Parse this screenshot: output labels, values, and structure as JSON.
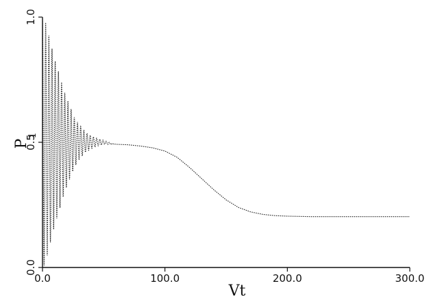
{
  "chart_data": {
    "type": "line",
    "title": "",
    "xlabel": "Vt",
    "ylabel_main": "P",
    "ylabel_sub": "1",
    "xlim": [
      0,
      300
    ],
    "ylim": [
      0,
      1
    ],
    "xticks": [
      0,
      100,
      200,
      300
    ],
    "xtick_labels": [
      "0.0",
      "100.0",
      "200.0",
      "300.0"
    ],
    "yticks": [
      0,
      0.5,
      1
    ],
    "ytick_labels": [
      "0.0",
      "0.5",
      "1.0"
    ],
    "grid": false,
    "series": [
      {
        "description_points": "damped oscillation around 0.5 from Vt=0 to about 55, then flat near 0.49, decaying smoothly to about 0.2 between Vt=100 and 200, flat to 300",
        "x": [
          0,
          2,
          4,
          6,
          8,
          10,
          12,
          15,
          18,
          22,
          26,
          30,
          35,
          40,
          45,
          50,
          55,
          60,
          70,
          80,
          90,
          100,
          110,
          120,
          130,
          140,
          150,
          160,
          170,
          180,
          190,
          200,
          210,
          220,
          240,
          260,
          280,
          300
        ],
        "envelope_amplitude": [
          0.5,
          0.49,
          0.45,
          0.41,
          0.37,
          0.33,
          0.3,
          0.25,
          0.2,
          0.15,
          0.1,
          0.07,
          0.04,
          0.025,
          0.015,
          0.008,
          0.004,
          0.0,
          0,
          0,
          0,
          0,
          0,
          0,
          0,
          0,
          0,
          0,
          0,
          0,
          0,
          0,
          0,
          0,
          0,
          0,
          0,
          0
        ],
        "y": [
          0.5,
          0.5,
          0.5,
          0.5,
          0.5,
          0.5,
          0.5,
          0.5,
          0.5,
          0.5,
          0.5,
          0.5,
          0.5,
          0.5,
          0.5,
          0.5,
          0.495,
          0.492,
          0.49,
          0.485,
          0.478,
          0.465,
          0.44,
          0.4,
          0.355,
          0.31,
          0.27,
          0.24,
          0.222,
          0.212,
          0.207,
          0.205,
          0.204,
          0.203,
          0.203,
          0.203,
          0.203,
          0.203
        ],
        "oscillation_period": 2.6
      }
    ]
  }
}
